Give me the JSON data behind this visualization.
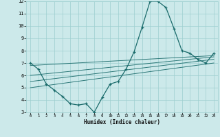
{
  "xlabel": "Humidex (Indice chaleur)",
  "bg_color": "#cce9ea",
  "grid_color": "#9ecfcf",
  "line_color": "#1a6b6b",
  "xlim": [
    -0.5,
    23.5
  ],
  "ylim": [
    3,
    12
  ],
  "xticks": [
    0,
    1,
    2,
    3,
    4,
    5,
    6,
    7,
    8,
    9,
    10,
    11,
    12,
    13,
    14,
    15,
    16,
    17,
    18,
    19,
    20,
    21,
    22,
    23
  ],
  "yticks": [
    3,
    4,
    5,
    6,
    7,
    8,
    9,
    10,
    11,
    12
  ],
  "main_x": [
    0,
    1,
    2,
    3,
    4,
    5,
    6,
    7,
    8,
    9,
    10,
    11,
    12,
    13,
    14,
    15,
    16,
    17,
    18,
    19,
    20,
    21,
    22,
    23
  ],
  "main_y": [
    7.0,
    6.5,
    5.3,
    4.8,
    4.3,
    3.7,
    3.6,
    3.7,
    3.0,
    4.2,
    5.3,
    5.5,
    6.5,
    7.9,
    9.9,
    12.0,
    12.0,
    11.5,
    9.8,
    8.0,
    7.8,
    7.3,
    7.0,
    7.8
  ],
  "reg_lines": [
    {
      "x": [
        0,
        23
      ],
      "y": [
        6.8,
        7.6
      ]
    },
    {
      "x": [
        0,
        23
      ],
      "y": [
        6.0,
        7.5
      ]
    },
    {
      "x": [
        0,
        23
      ],
      "y": [
        5.5,
        7.3
      ]
    },
    {
      "x": [
        0,
        23
      ],
      "y": [
        5.0,
        7.0
      ]
    }
  ]
}
